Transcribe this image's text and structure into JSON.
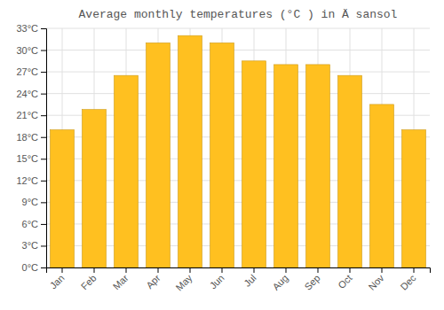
{
  "chart_data": {
    "type": "bar",
    "title": "Average monthly temperatures (°C ) in Ä sansol",
    "categories": [
      "Jan",
      "Feb",
      "Mar",
      "Apr",
      "May",
      "Jun",
      "Jul",
      "Aug",
      "Sep",
      "Oct",
      "Nov",
      "Dec"
    ],
    "values": [
      19.0,
      21.8,
      26.5,
      31.0,
      32.0,
      31.0,
      28.5,
      28.0,
      28.0,
      26.5,
      22.5,
      19.0
    ],
    "color": "#FFC020",
    "ylim": [
      0,
      33
    ],
    "yticks": [
      {
        "value": 0,
        "label": "0°C"
      },
      {
        "value": 3,
        "label": "3°C"
      },
      {
        "value": 6,
        "label": "6°C"
      },
      {
        "value": 9,
        "label": "9°C"
      },
      {
        "value": 12,
        "label": "12°C"
      },
      {
        "value": 15,
        "label": "15°C"
      },
      {
        "value": 18,
        "label": "18°C"
      },
      {
        "value": 21,
        "label": "21°C"
      },
      {
        "value": 24,
        "label": "24°C"
      },
      {
        "value": 27,
        "label": "27°C"
      },
      {
        "value": 30,
        "label": "30°C"
      },
      {
        "value": 33,
        "label": "33°C"
      }
    ],
    "grid": true
  }
}
